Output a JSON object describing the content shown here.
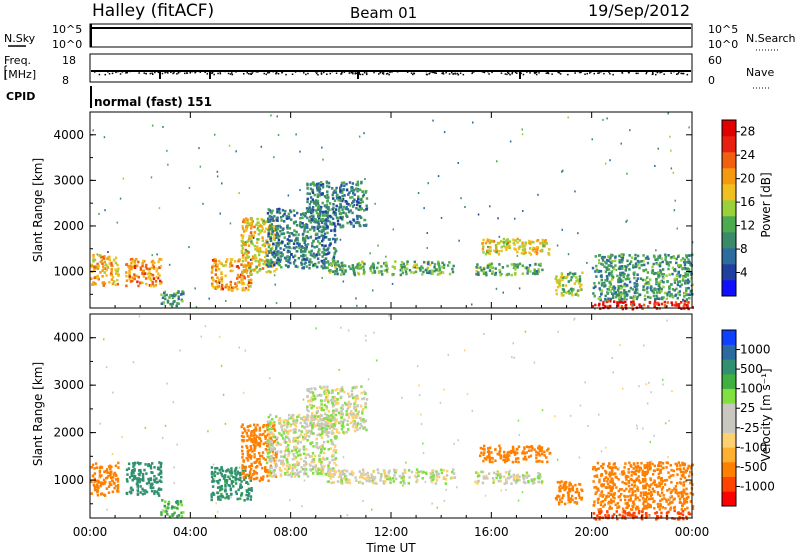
{
  "header": {
    "station": "Halley (fitACF)",
    "beam": "Beam 01",
    "date": "19/Sep/2012"
  },
  "strips": {
    "nsky": {
      "label": "N.Sky",
      "tick_top": "10^5",
      "tick_bottom": "10^0"
    },
    "nsearch": {
      "label": "N.Search",
      "tick_top": "10^5",
      "tick_bottom": "10^0"
    },
    "freq": {
      "label_line1": "Freq.",
      "label_line2": "[MHz]",
      "tick_top": "18",
      "tick_bottom": "8"
    },
    "nave": {
      "label": "Nave",
      "tick_top": "60",
      "tick_bottom": "0"
    },
    "cpid": {
      "label": "CPID",
      "value": "normal (fast) 151"
    }
  },
  "colors": {
    "power_scale": [
      "#1010ff",
      "#2040a0",
      "#2e6c9e",
      "#3a8a6a",
      "#4caa50",
      "#9ad03a",
      "#f0c020",
      "#f59a10",
      "#f06010",
      "#e82010",
      "#e00000"
    ],
    "velocity_scale": [
      "#ff0000",
      "#ff4400",
      "#ff8000",
      "#ffb030",
      "#ffd070",
      "#c8c8c0",
      "#c8c8c0",
      "#80e040",
      "#40b040",
      "#309070",
      "#2a6aa0",
      "#1040ff"
    ]
  },
  "chart_data": [
    {
      "type": "heatmap",
      "name": "power",
      "ylabel": "Slant Range [km]",
      "xlabel": "",
      "x_ticks": [
        "00:00",
        "04:00",
        "08:00",
        "12:00",
        "16:00",
        "20:00",
        "00:00"
      ],
      "y_ticks": [
        "1000",
        "2000",
        "3000",
        "4000"
      ],
      "ylim": [
        200,
        4500
      ],
      "xlim_hours": [
        0,
        24
      ],
      "colorbar": {
        "label": "Power [dB]",
        "ticks": [
          "4",
          "8",
          "12",
          "16",
          "20",
          "24",
          "28"
        ],
        "range": [
          0,
          30
        ]
      },
      "regions": [
        {
          "t0": 0.0,
          "t1": 1.1,
          "r0": 700,
          "r1": 1400,
          "level": 20
        },
        {
          "t0": 1.4,
          "t1": 2.8,
          "r0": 700,
          "r1": 1300,
          "level": 22
        },
        {
          "t0": 2.8,
          "t1": 3.7,
          "r0": 250,
          "r1": 600,
          "level": 10
        },
        {
          "t0": 4.8,
          "t1": 6.4,
          "r0": 600,
          "r1": 1300,
          "level": 21
        },
        {
          "t0": 6.0,
          "t1": 7.4,
          "r0": 1000,
          "r1": 2200,
          "level": 18
        },
        {
          "t0": 7.0,
          "t1": 9.8,
          "r0": 1100,
          "r1": 2400,
          "level": 8
        },
        {
          "t0": 8.6,
          "t1": 11.0,
          "r0": 2000,
          "r1": 3000,
          "level": 8
        },
        {
          "t0": 9.4,
          "t1": 14.5,
          "r0": 950,
          "r1": 1250,
          "level": 12
        },
        {
          "t0": 15.3,
          "t1": 18.0,
          "r0": 950,
          "r1": 1200,
          "level": 12
        },
        {
          "t0": 15.5,
          "t1": 18.3,
          "r0": 1400,
          "r1": 1750,
          "level": 18
        },
        {
          "t0": 18.5,
          "t1": 19.6,
          "r0": 500,
          "r1": 1000,
          "level": 14
        },
        {
          "t0": 20.0,
          "t1": 24.0,
          "r0": 200,
          "r1": 380,
          "level": 28
        },
        {
          "t0": 20.0,
          "t1": 24.0,
          "r0": 400,
          "r1": 1400,
          "level": 10
        }
      ]
    },
    {
      "type": "heatmap",
      "name": "velocity",
      "ylabel": "Slant Range [km]",
      "xlabel": "Time UT",
      "x_ticks": [
        "00:00",
        "04:00",
        "08:00",
        "12:00",
        "16:00",
        "20:00",
        "00:00"
      ],
      "y_ticks": [
        "1000",
        "2000",
        "3000",
        "4000"
      ],
      "ylim": [
        200,
        4500
      ],
      "xlim_hours": [
        0,
        24
      ],
      "colorbar": {
        "label": "Velocity [m s⁻¹]",
        "ticks": [
          "1000",
          "500",
          "100",
          "25",
          "-25",
          "-100",
          "-500",
          "-1000"
        ]
      },
      "regions": [
        {
          "t0": 0.0,
          "t1": 1.1,
          "r0": 700,
          "r1": 1400,
          "level": -300
        },
        {
          "t0": 1.4,
          "t1": 2.8,
          "r0": 700,
          "r1": 1400,
          "level": 200
        },
        {
          "t0": 2.8,
          "t1": 3.7,
          "r0": 250,
          "r1": 600,
          "level": 80
        },
        {
          "t0": 4.8,
          "t1": 6.4,
          "r0": 600,
          "r1": 1300,
          "level": 150
        },
        {
          "t0": 6.0,
          "t1": 7.4,
          "r0": 1000,
          "r1": 2200,
          "level": -250
        },
        {
          "t0": 7.0,
          "t1": 9.8,
          "r0": 1100,
          "r1": 2400,
          "level": 0
        },
        {
          "t0": 8.6,
          "t1": 11.0,
          "r0": 2000,
          "r1": 3000,
          "level": 0
        },
        {
          "t0": 9.4,
          "t1": 14.5,
          "r0": 950,
          "r1": 1250,
          "level": 0
        },
        {
          "t0": 15.3,
          "t1": 18.0,
          "r0": 950,
          "r1": 1200,
          "level": 0
        },
        {
          "t0": 15.5,
          "t1": 18.3,
          "r0": 1400,
          "r1": 1750,
          "level": -300
        },
        {
          "t0": 18.5,
          "t1": 19.6,
          "r0": 500,
          "r1": 1000,
          "level": -400
        },
        {
          "t0": 20.0,
          "t1": 24.0,
          "r0": 200,
          "r1": 380,
          "level": -600
        },
        {
          "t0": 20.0,
          "t1": 24.0,
          "r0": 400,
          "r1": 1400,
          "level": -200
        }
      ]
    }
  ]
}
